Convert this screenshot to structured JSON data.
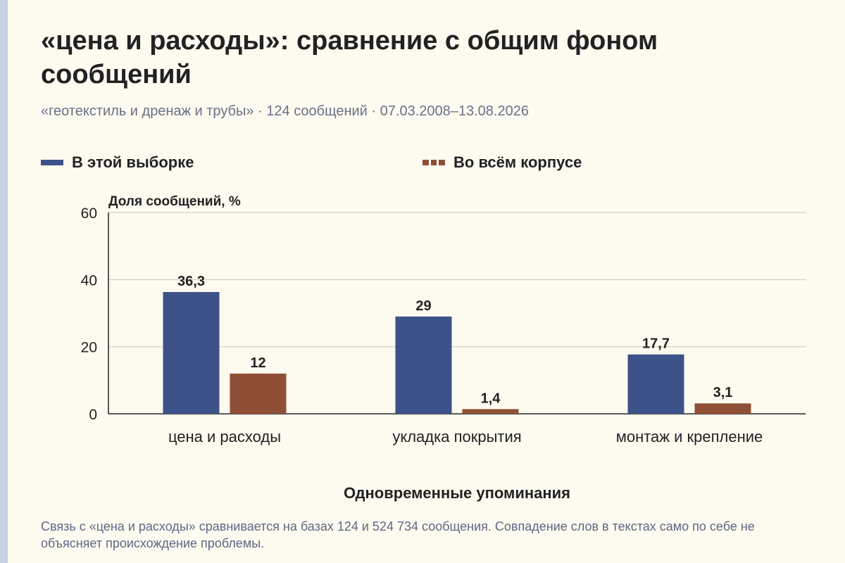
{
  "header": {
    "title": "«цена и расходы»: сравнение с общим фоном сообщений",
    "subtitle": "«геотекстиль и дренаж и трубы» · 124 сообщений · 07.03.2008–13.08.2026"
  },
  "colors": {
    "sample": "#3d5288",
    "corpus": "#8f4f37",
    "axis": "#222222",
    "grid": "#d9d6cc"
  },
  "chart_data": {
    "type": "bar",
    "categories": [
      "цена и расходы",
      "укладка покрытия",
      "монтаж и крепление"
    ],
    "series": [
      {
        "name": "В этой выборке",
        "values": [
          36.3,
          29,
          17.7
        ],
        "labels": [
          "36,3",
          "29",
          "17,7"
        ]
      },
      {
        "name": "Во всём корпусе",
        "values": [
          12,
          1.4,
          3.1
        ],
        "labels": [
          "12",
          "1,4",
          "3,1"
        ]
      }
    ],
    "ylabel": "Доля сообщений, %",
    "xlabel": "Одновременные упоминания",
    "ylim": [
      0,
      60
    ],
    "yticks": [
      0,
      20,
      40,
      60
    ],
    "grid": true,
    "legend_position": "top"
  },
  "footer": {
    "note": "Связь с «цена и расходы» сравнивается на базах 124 и 524 734 сообщения. Совпадение слов в текстах само по себе не объясняет происхождение проблемы."
  }
}
